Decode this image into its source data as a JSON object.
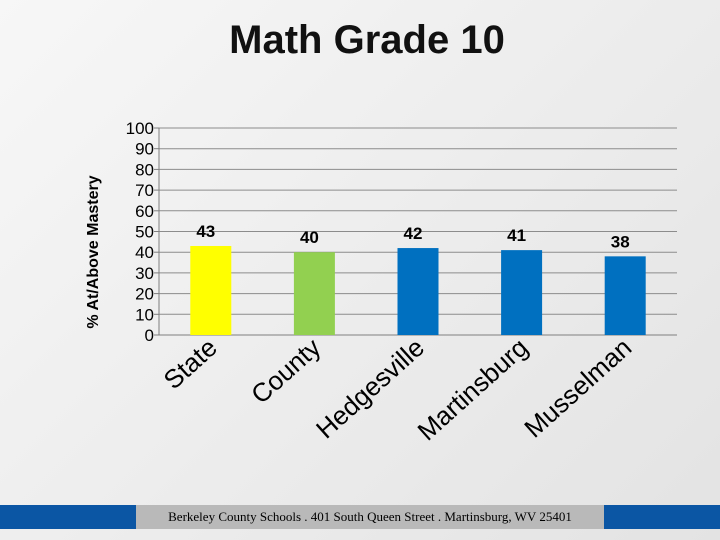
{
  "slide": {
    "footer": "Berkeley County Schools . 401 South Queen Street . Martinsburg, WV  25401"
  },
  "colors": {
    "state": "#ffff00",
    "county": "#92d050",
    "school": "#0070c0",
    "footer_band": "#0b56a4",
    "footer_box": "#b9b9b9"
  },
  "chart_data": {
    "type": "bar",
    "title": "Math Grade 10",
    "ylabel": "% At/Above Mastery",
    "xlabel": "",
    "ylim": [
      0,
      100
    ],
    "yticks": [
      0,
      10,
      20,
      30,
      40,
      50,
      60,
      70,
      80,
      90,
      100
    ],
    "grid": true,
    "legend": "none",
    "categories": [
      "State",
      "County",
      "Hedgesville",
      "Martinsburg",
      "Musselman"
    ],
    "values": [
      43,
      40,
      42,
      41,
      38
    ],
    "bar_colors": [
      "#ffff00",
      "#92d050",
      "#0070c0",
      "#0070c0",
      "#0070c0"
    ]
  }
}
